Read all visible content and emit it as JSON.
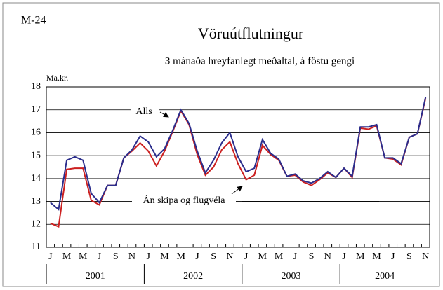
{
  "chart_data": {
    "type": "line",
    "figure_id": "M-24",
    "title": "Vöruútflutningur",
    "subtitle": "3 mánaða hreyfanlegt meðaltal, á föstu gengi",
    "ylabel": "Ma.kr.",
    "categories": [
      "J",
      null,
      "M",
      null,
      "M",
      null,
      "J",
      null,
      "S",
      null,
      "N",
      null,
      "J",
      null,
      "M",
      null,
      "M",
      null,
      "J",
      null,
      "S",
      null,
      "N",
      null,
      "J",
      null,
      "M",
      null,
      "M",
      null,
      "J",
      null,
      "S",
      null,
      "N",
      null,
      "J",
      null,
      "M",
      null,
      "M",
      null,
      "J",
      null,
      "S",
      null,
      "N"
    ],
    "years": [
      "2001",
      "2002",
      "2003",
      "2004"
    ],
    "ylim": [
      11,
      18
    ],
    "yticks": [
      11,
      12,
      13,
      14,
      15,
      16,
      17,
      18
    ],
    "grid": true,
    "series": [
      {
        "name": "Alls",
        "color": "#2b2d8c",
        "values": [
          12.95,
          12.65,
          14.8,
          14.95,
          14.8,
          13.35,
          12.95,
          13.7,
          13.7,
          14.9,
          15.25,
          15.85,
          15.6,
          14.95,
          15.3,
          16.1,
          17.0,
          16.4,
          15.2,
          14.25,
          14.8,
          15.55,
          16.0,
          14.95,
          14.3,
          14.45,
          15.7,
          15.1,
          14.85,
          14.1,
          14.2,
          13.9,
          13.8,
          14.0,
          14.3,
          14.05,
          14.45,
          14.1,
          16.25,
          16.25,
          16.35,
          14.9,
          14.9,
          14.65,
          15.8,
          15.95,
          17.55
        ]
      },
      {
        "name": "Án skipa og flugvéla",
        "color": "#cc2020",
        "values": [
          12.05,
          11.9,
          14.4,
          14.45,
          14.45,
          13.05,
          12.85,
          13.7,
          13.7,
          14.9,
          15.2,
          15.55,
          15.2,
          14.55,
          15.2,
          16.05,
          16.95,
          16.35,
          15.05,
          14.15,
          14.5,
          15.25,
          15.6,
          14.65,
          13.95,
          14.15,
          15.45,
          15.05,
          14.8,
          14.1,
          14.15,
          13.85,
          13.7,
          13.95,
          14.25,
          14.05,
          14.45,
          14.05,
          16.2,
          16.15,
          16.3,
          14.9,
          14.85,
          14.6,
          15.8,
          15.95,
          17.5
        ]
      }
    ]
  }
}
